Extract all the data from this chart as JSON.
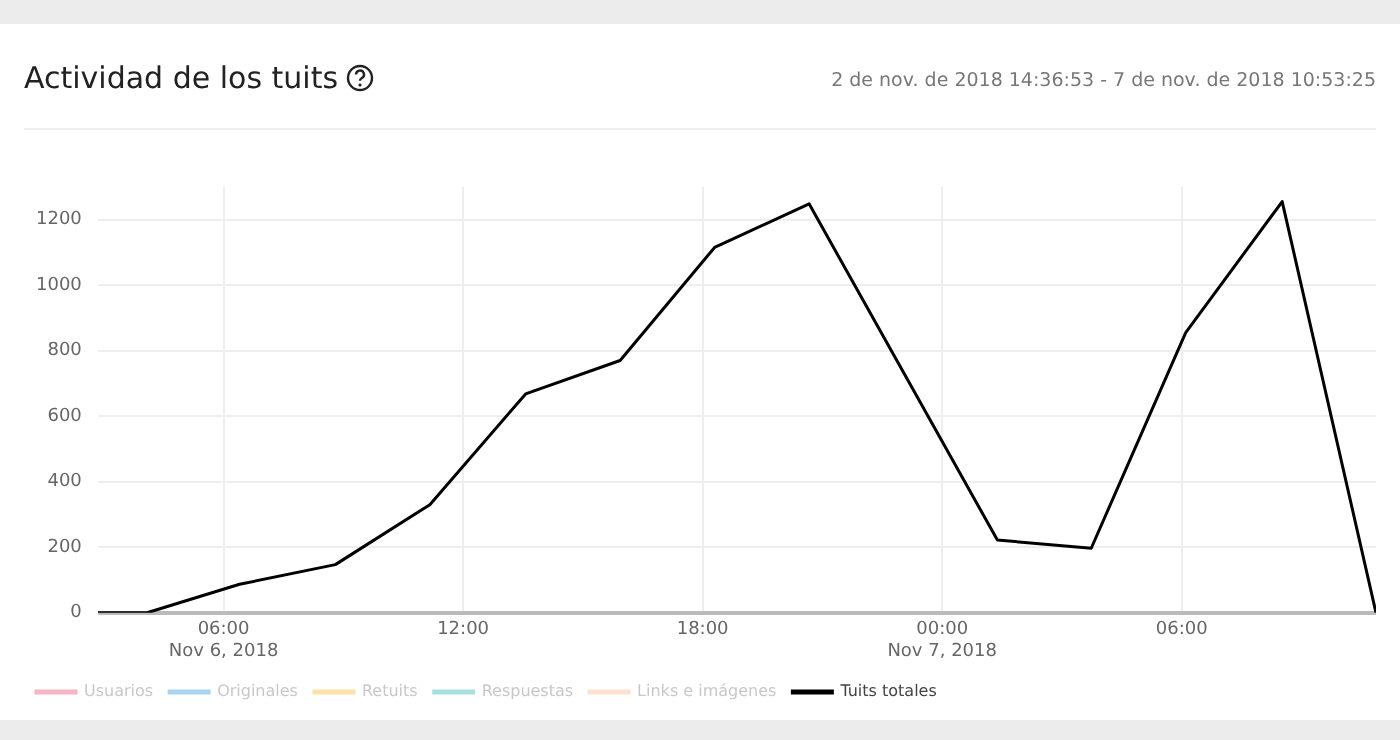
{
  "chart_data": {
    "type": "line",
    "title": "Actividad de los tuits",
    "subtitle": "2 de nov. de 2018 14:36:53 - 7 de nov. de 2018 10:53:25",
    "x": [
      "2018-11-06T02:51",
      "2018-11-06T04:05",
      "2018-11-06T06:24",
      "2018-11-06T08:48",
      "2018-11-06T11:10",
      "2018-11-06T13:34",
      "2018-11-06T15:56",
      "2018-11-06T18:18",
      "2018-11-06T20:40",
      "2018-11-07T01:23",
      "2018-11-07T03:44",
      "2018-11-07T06:06",
      "2018-11-07T08:31",
      "2018-11-07T10:52"
    ],
    "series": [
      {
        "name": "Usuarios",
        "color": "#f4b6c2",
        "values": [
          null,
          null,
          null,
          null,
          null,
          null,
          null,
          null,
          null,
          null,
          null,
          null,
          null,
          null
        ]
      },
      {
        "name": "Originales",
        "color": "#a8d4f0",
        "values": [
          null,
          null,
          null,
          null,
          null,
          null,
          null,
          null,
          null,
          null,
          null,
          null,
          null,
          null
        ]
      },
      {
        "name": "Retuits",
        "color": "#fbe3a8",
        "values": [
          null,
          null,
          null,
          null,
          null,
          null,
          null,
          null,
          null,
          null,
          null,
          null,
          null,
          null
        ]
      },
      {
        "name": "Respuestas",
        "color": "#a8e0e0",
        "values": [
          null,
          null,
          null,
          null,
          null,
          null,
          null,
          null,
          null,
          null,
          null,
          null,
          null,
          null
        ]
      },
      {
        "name": "Links e imágenes",
        "color": "#fde0d0",
        "values": [
          null,
          null,
          null,
          null,
          null,
          null,
          null,
          null,
          null,
          null,
          null,
          null,
          null,
          null
        ]
      },
      {
        "name": "Tuits totales",
        "color": "#000000",
        "values": [
          0,
          0,
          87,
          147,
          330,
          668,
          770,
          1115,
          1248,
          222,
          197,
          855,
          1255,
          0
        ]
      }
    ],
    "xlim": [
      "2018-11-06T02:51",
      "2018-11-07T10:52"
    ],
    "xticks": [
      {
        "value": "2018-11-06T06:00",
        "label": "06:00\nNov 6, 2018"
      },
      {
        "value": "2018-11-06T12:00",
        "label": "12:00"
      },
      {
        "value": "2018-11-06T18:00",
        "label": "18:00"
      },
      {
        "value": "2018-11-07T00:00",
        "label": "00:00\nNov 7, 2018"
      },
      {
        "value": "2018-11-07T06:00",
        "label": "06:00"
      }
    ],
    "ylim": [
      0,
      1300
    ],
    "yticks": [
      0,
      200,
      400,
      600,
      800,
      1000,
      1200
    ],
    "grid": true,
    "legend": "bottom",
    "marker": "none",
    "line_style": "solid"
  }
}
